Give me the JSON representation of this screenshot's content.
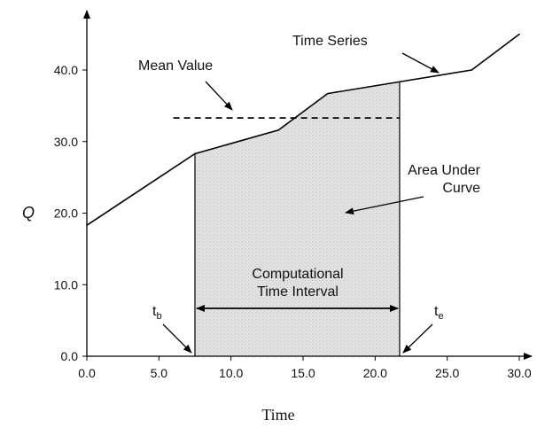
{
  "chart_data": {
    "type": "line",
    "title": "",
    "xlabel": "Time",
    "ylabel": "Q",
    "xlim": [
      0,
      30
    ],
    "ylim": [
      0,
      45
    ],
    "x_ticks": [
      0,
      5,
      10,
      15,
      20,
      25,
      30
    ],
    "x_tick_labels": [
      "0.0",
      "5.0",
      "10.0",
      "15.0",
      "20.0",
      "25.0",
      "30.0"
    ],
    "y_ticks": [
      0,
      10,
      20,
      30,
      40
    ],
    "y_tick_labels": [
      "0.0",
      "10.0",
      "20.0",
      "30.0",
      "40.0"
    ],
    "grid": false,
    "series": [
      {
        "name": "Time Series",
        "x": [
          0,
          7.5,
          13.3,
          16.7,
          26.7,
          30.0
        ],
        "y": [
          18.3,
          28.3,
          31.6,
          36.7,
          40.0,
          45.0
        ]
      }
    ],
    "mean_value": {
      "label": "Mean Value",
      "y": 33.3,
      "x_range": [
        6.0,
        21.7
      ]
    },
    "interval": {
      "tb": 7.5,
      "te": 21.7,
      "tb_label": "t",
      "tb_sub": "b",
      "te_label": "t",
      "te_sub": "e"
    },
    "annotations": {
      "time_series": "Time Series",
      "mean_value": "Mean Value",
      "area_line1": "Area Under",
      "area_line2": "Curve",
      "interval_line1": "Computational",
      "interval_line2": "Time Interval"
    }
  }
}
